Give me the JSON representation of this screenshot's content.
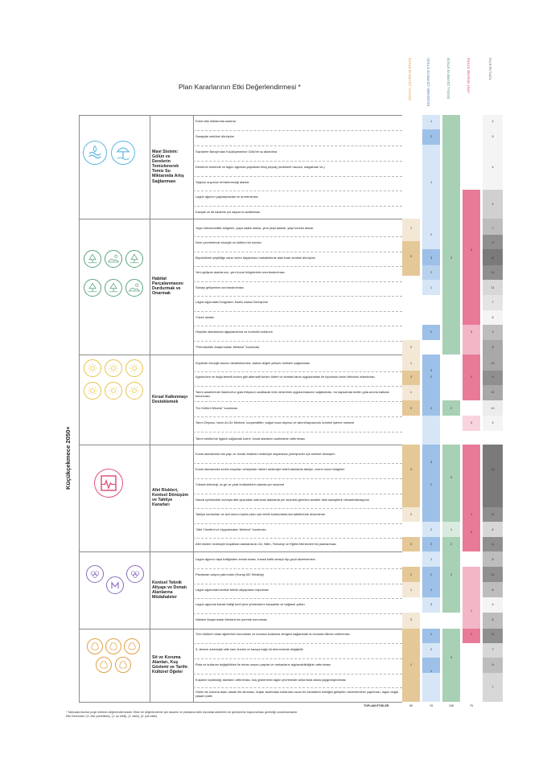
{
  "title": "Plan Kararlarının Etki Değerlendirmesi *",
  "vertical_title": "Küçükçekmece 2050+",
  "colors": {
    "social": "#e5c898",
    "economic": "#9cc0e8",
    "natural": "#a8d0b4",
    "disaster": "#e87a98",
    "total_light": "#d9d9d9",
    "total_dark": "#8c8c8c"
  },
  "columns": [
    {
      "label": "SOSYAL ÇEVREYE ETKİSİ",
      "color": "#d9a24c"
    },
    {
      "label": "EKONOMİK ÇEVREYE ETKİSİ",
      "color": "#4a87c8"
    },
    {
      "label": "DOĞAL ÇEVREYE ETKİSİ",
      "color": "#4a9a68"
    },
    {
      "label": "AFET RİSKİNE ETKİSİ",
      "color": "#e0527c"
    },
    {
      "label": "TOPLAM ETKİ",
      "color": "#777777"
    }
  ],
  "groups": [
    {
      "name": "Mavi Sistem:\nGölün ve\nDerelerin\nTemizlenerek\nTemiz Su\nMiktarında Artış\nSağlanması",
      "icons": [
        "water-drops-icon",
        "beach-umbrella-icon"
      ],
      "items": [
        "Evsel atık miktarında azalma",
        "Sanayide sektörel dönüşüm",
        "Sazlıdere Barajı'ndan Küçükçekmece Gölü'ne su aktarılma",
        "Derelerin üzerinde ve lagün ağzında yapılandırılmış peyzaj (sediment havuzu, dalgakıran vb.)",
        "Yağmur suyunun temizleneceği alanlar",
        "Lagün ağzının yapılaşmadan ve arındırılması",
        "Kavşak ve alt kademe yol sayısının azaltılması"
      ]
    },
    {
      "name": "Habitat\nParçalanmasını\nDurdurmak ve\nOnarmak",
      "icons": [
        "trees-icon",
        "dunes-icon",
        "grass-icon",
        "tree-icon",
        "forest-icon",
        "landscape-icon"
      ],
      "items": [
        "Yaya mikromobilite bölgeleri, yaya odaklı akslar, yeni yeşil alanlar, yeşil koridor akslar",
        "Dere çevrelerinde ekolojik ve kültürel bir koridor",
        "Biyokültürel çeşitliliğe zarar veren dayanıksız mahallelerde alan bazlı kentsel dönüşüm",
        "Yeni gelişme alanlarının, yeni konut bölgelerinin sınırlandırılması",
        "Sanayi gelişiminin sınırlandırılması",
        "Lagün Ağzındaki Dolguların Sazlık Alana Dönüşümü",
        "Yüzen adalar",
        "Heyelan alanlarında ağaçlandırma ve kontrollü kullanım",
        "\"Permakültür Araştırmaları Merkezi\" kurulması"
      ]
    },
    {
      "name": "Kırsal Kalkınmayı\nDesteklemek",
      "icons": [
        "sprout-icon",
        "grapes-icon",
        "farmer-icon",
        "field-icon",
        "sun-icon",
        "wheat-icon"
      ],
      "items": [
        "Köylerde ekolojik tarımın desteklenmesi, katma değeri yüksek üretimin sağlanması",
        "Agroturizm ve doğa temelli turizm gibi alternatif turizm türleri ve kentsel tarım uygulamaları ile toplumun tarım bilincinin arttırılması",
        "Tarım arazilerinde İstanbul'un gıda ihtiyacını azaltacak ürün deseninin uygulanmasının sağlanması, bu kapsamda kentin gıda arzına katkıda bulunması",
        "\"Kır Kültürü Müzesi\" kurulması",
        "Tarım Deposu, tarım Ar-Ge Merkezi, kooperatifler, soğuk hava deposu ve tarım/hayvancılık ürünleri işleme merkezi",
        "Tarım sektörüne işgücü sağlamak üzere, kırsal alanların cazibesinin arttırılması"
      ]
    },
    {
      "name": "Afet Riskleri,\nKentsel Dönüşüm\nve Tahliye\nKararları",
      "icons": [
        "seismograph-icon"
      ],
      "items": [
        "Konut alanlarında üst yapı ve donatı eksikleri nedeniyle dayanıksız yerleşmeler için kentsel dönüşüm",
        "Konut alanlarında zemin koşulları veheyelan riskleri nedeniyle belirli alanlarda tahliye, rezerv konut bölgeleri",
        "Yüksek teknoloji, ar-ge ve yeşil endüstrilerin alanda yer seçmesi",
        "Havza içerisindeki ve/veya afet açısından sakıncalı alanlarda yer seçmesi gereken araziler deki sanayilerin desantralizasyonu",
        "Tahliye koridorları ve acil durum eylem planı için belirli koridorlarda kat adetlerinde düzenleme",
        "\"Afet Yönetimi ve Uygulamaları Merkezi\" kurulması",
        "Afet riskleri nedeniyle boşaltılan alanlarda Ar-Ge, Bilim, Teknoloji ve Eğitim Merkezleri'nin planlanması"
      ]
    },
    {
      "name": "Kentsel Teknik\nAltyapı ve Donatı\nAlanlarına\nMüdahaleler",
      "icons": [
        "theater-masks-icon",
        "metro-icon",
        "olympic-rings-icon"
      ],
      "items": [
        "Lagün ağzının taşıt trafiğinden arındırılması, transit trafik amaçlı tüp geçit düzenlemesi",
        "Planlanan ulaşım yatırımları (Hızray-M2 Sefaköy)",
        "Lagün ağzındaki kentsel teknik altyapıların taşınması",
        "Lagün ağzında transit trafiği kent içine yönlendiren kavşaklar ve bağlantı yolları",
        "Nükleer Araştırmalar Merkezi'nin yerinde korunması"
      ]
    },
    {
      "name": "Sit ve Koruma\nAlanları, Kuş\nGözlemi ve Tarihi-\nKültürel Öğeler",
      "icons": [
        "bird-icon",
        "amphora-icon",
        "column-icon",
        "flag-icon",
        "temple-icon"
      ],
      "items": [
        "Tüm kültürel miras öğelerinin korunması ve koruma-kullanma dengesi sağlanarak bu konuda bilincin arttırılması",
        "3. derece arkeolojik sitte kazı önerisi ve kazıya bağlı sit derecesinde değişiklik",
        "Rota ve kullanım değişiklikleri ile miras unsuru yapılar ve mekanların algılanabilirliğinin arttırılması",
        "Kuşların toplandığı alanların arttırılması, kuş gözleminin lagün çevresinde daha fazla alana yaygınlaştırılması",
        "Gölün bir koruma alanı olarak ele alınması, kuşlar tarafından kullanılan sucul bir ekosistem kimliğini geliştiren düzenlemeler yapılması, lagün doğal yaşam parkı"
      ]
    }
  ],
  "cell_values": {
    "economic": [
      "1",
      "2",
      "1",
      "2",
      "3",
      "2",
      "1",
      "2",
      "3",
      "2",
      "2",
      "3",
      "2",
      "2",
      "2",
      "1",
      "2",
      "1",
      "3",
      "1",
      "2",
      "1"
    ],
    "social": [
      "1",
      "3",
      "2",
      "1",
      "3",
      "1",
      "3",
      "3",
      "2",
      "3",
      "2",
      "1",
      "3",
      "1",
      "2"
    ],
    "natural": [
      "2",
      "2",
      "3",
      "1",
      "2",
      "2",
      "3"
    ],
    "disaster": [
      "3",
      "3",
      "2",
      "3",
      "1",
      "3",
      "1",
      "2"
    ],
    "total": [
      "4",
      "5",
      "4",
      "4",
      "7",
      "9",
      "11",
      "12",
      "11",
      "7",
      "6",
      "3",
      "8",
      "10",
      "9",
      "12",
      "10",
      "4",
      "12",
      "11",
      "6",
      "11",
      "8",
      "11",
      "8",
      "4",
      "8",
      "11",
      "7",
      "8",
      "7"
    ]
  },
  "totals": {
    "label": "TOPLAM ETKİLER",
    "values": [
      "59",
      "78",
      "108",
      "76"
    ]
  },
  "footnotes": [
    "* Tablodaki skorlar proje ekibinin değerlendirmesidir. Etkin bir değerlendirme için tasarım ve planlama ekibi dışındaki aktörlerin de görüşlerine başvurulması gerektiği unutulmamalıdır.",
    "Etki Dereceleri: (0: etki yok/etkisiz), (1: az etkili), (2: etkili), (3: çok etkili)"
  ]
}
